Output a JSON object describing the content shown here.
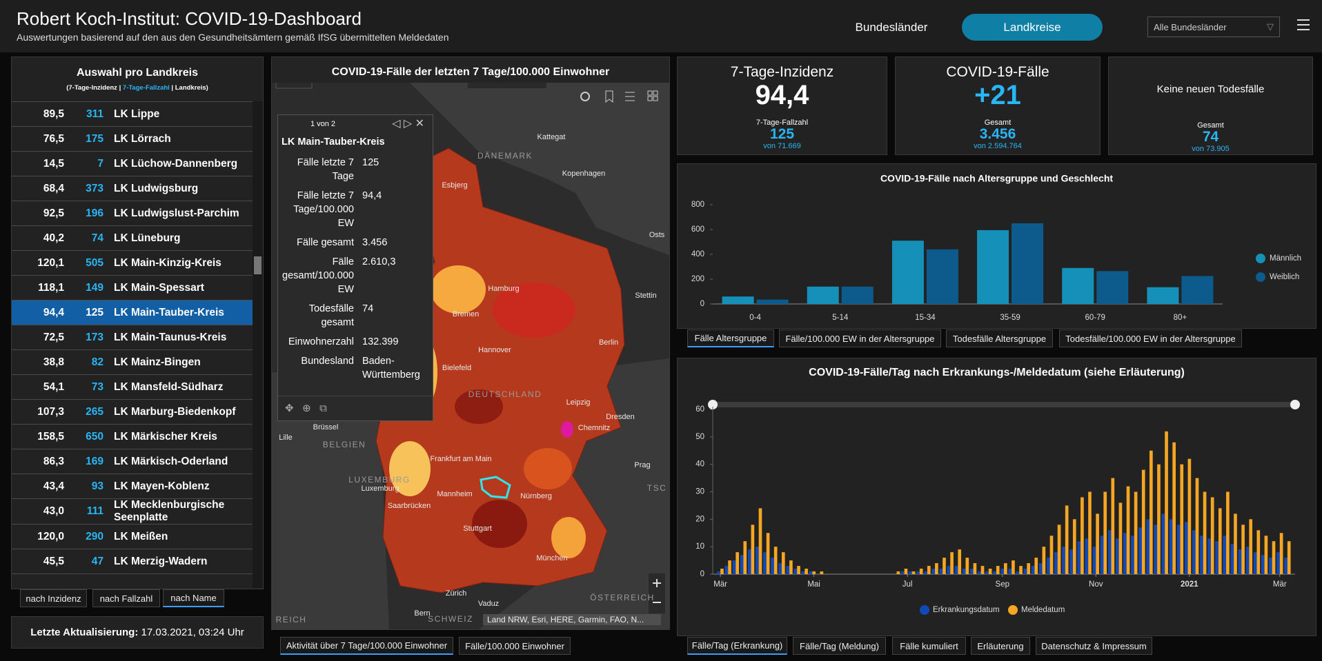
{
  "header": {
    "title": "Robert Koch-Institut: COVID-19-Dashboard",
    "subtitle": "Auswertungen basierend auf den aus den Gesundheitsämtern gemäß IfSG übermittelten Meldedaten",
    "nav": [
      "Bundesländer",
      "Landkreise"
    ],
    "dropdown": "Alle Bundesländer"
  },
  "list": {
    "title": "Auswahl pro Landkreis",
    "legend": [
      "(7-Tage-Inzidenz | ",
      "7-Tage-Fallzahl",
      " | Landkreis)"
    ],
    "selected_row": 8,
    "rows": [
      [
        "89,5",
        "311",
        "LK Lippe"
      ],
      [
        "76,5",
        "175",
        "LK Lörrach"
      ],
      [
        "14,5",
        "7",
        "LK Lüchow-Dannenberg"
      ],
      [
        "68,4",
        "373",
        "LK Ludwigsburg"
      ],
      [
        "92,5",
        "196",
        "LK Ludwigslust-Parchim"
      ],
      [
        "40,2",
        "74",
        "LK Lüneburg"
      ],
      [
        "120,1",
        "505",
        "LK Main-Kinzig-Kreis"
      ],
      [
        "118,1",
        "149",
        "LK Main-Spessart"
      ],
      [
        "94,4",
        "125",
        "LK Main-Tauber-Kreis"
      ],
      [
        "72,5",
        "173",
        "LK Main-Taunus-Kreis"
      ],
      [
        "38,8",
        "82",
        "LK Mainz-Bingen"
      ],
      [
        "54,1",
        "73",
        "LK Mansfeld-Südharz"
      ],
      [
        "107,3",
        "265",
        "LK Marburg-Biedenkopf"
      ],
      [
        "158,5",
        "650",
        "LK Märkischer Kreis"
      ],
      [
        "86,3",
        "169",
        "LK Märkisch-Oderland"
      ],
      [
        "43,4",
        "93",
        "LK Mayen-Koblenz"
      ],
      [
        "43,0",
        "111",
        "LK Mecklenburgische Seenplatte"
      ],
      [
        "120,0",
        "290",
        "LK Meißen"
      ],
      [
        "45,5",
        "47",
        "LK Merzig-Wadern"
      ]
    ],
    "sort_buttons": [
      "nach Inzidenz",
      "nach Fallzahl",
      "nach Name"
    ],
    "active_sort": 2
  },
  "update": {
    "label": "Letzte Aktualisierung:",
    "value": "17.03.2021, 03:24 Uhr"
  },
  "map": {
    "title": "COVID-19-Fälle der letzten 7 Tage/100.000 Einwohner",
    "labels": [
      "Kattegat",
      "DÄNEMARK",
      "Esbjerg",
      "Kopenhagen",
      "Osts",
      "Hamburg",
      "Stettin",
      "Bremen",
      "Hannover",
      "Berlin",
      "Bielefeld",
      "DEUTSCHLAND",
      "Leipzig",
      "Dresden",
      "Brüssel",
      "Chemnitz",
      "Lille",
      "BELGIEN",
      "Frankfurt am Main",
      "Prag",
      "LUXEMBURG",
      "Luxemburg",
      "Mannheim",
      "Nürnberg",
      "TSC",
      "Saarbrücken",
      "Stuttgart",
      "München",
      "Zürich",
      "Vaduz",
      "ÖSTERREICH",
      "Bern",
      "SCHWEIZ",
      "REICH"
    ],
    "attribution": "Land NRW, Esri, HERE, Garmin, FAO, N...",
    "tabs": [
      "Aktivität über 7 Tage/100.000 Einwohner",
      "Fälle/100.000 Einwohner"
    ],
    "active_tab": 0,
    "popup": {
      "pager": "1 von 2",
      "title": "LK Main-Tauber-Kreis",
      "fields": [
        [
          "Fälle letzte 7 Tage",
          "125"
        ],
        [
          "Fälle letzte 7 Tage/100.000 EW",
          "94,4"
        ],
        [
          "Fälle gesamt",
          "3.456"
        ],
        [
          "Fälle gesamt/100.000 EW",
          "2.610,3"
        ],
        [
          "Todesfälle gesamt",
          "74"
        ],
        [
          "Einwohnerzahl",
          "132.399"
        ],
        [
          "Bundesland",
          "Baden-Württemberg"
        ]
      ]
    }
  },
  "stats": [
    {
      "title": "7-Tage-Inzidenz",
      "value": "94,4",
      "sub_label": "7-Tage-Fallzahl",
      "sub_value": "125",
      "sub_total": "von 71.669"
    },
    {
      "title": "COVID-19-Fälle",
      "value": "+21",
      "sub_label": "Gesamt",
      "sub_value": "3.456",
      "sub_total": "von 2.594.764"
    },
    {
      "title": "Keine neuen Todesfälle",
      "sub_label": "Gesamt",
      "sub_value": "74",
      "sub_total": "von 73.905"
    }
  ],
  "chart_data": [
    {
      "type": "bar",
      "title": "COVID-19-Fälle nach Altersgruppe und Geschlecht",
      "categories": [
        "0-4",
        "5-14",
        "15-34",
        "35-59",
        "60-79",
        "80+"
      ],
      "series": [
        {
          "name": "Männlich",
          "color": "#1590b8",
          "values": [
            60,
            140,
            510,
            595,
            290,
            135
          ]
        },
        {
          "name": "Weiblich",
          "color": "#0d5b8c",
          "values": [
            35,
            140,
            440,
            650,
            265,
            225
          ]
        }
      ],
      "ylim": [
        0,
        800
      ],
      "yticks": [
        0,
        200,
        400,
        600,
        800
      ],
      "grid": false,
      "legend": "right",
      "tabs": [
        "Fälle Altersgruppe",
        "Fälle/100.000 EW in der Altersgruppe",
        "Todesfälle Altersgruppe",
        "Todesfälle/100.000 EW in der Altersgruppe"
      ],
      "active_tab": 0
    },
    {
      "type": "bar",
      "title": "COVID-19-Fälle/Tag nach Erkrankungs-/Meldedatum (siehe Erläuterung)",
      "x": [
        0,
        5,
        10,
        15,
        20,
        25,
        30,
        35,
        40,
        45,
        50,
        55,
        60,
        65,
        70,
        75,
        80,
        85,
        90,
        95,
        100,
        105,
        110,
        115,
        120,
        125,
        130,
        135,
        140,
        145,
        150,
        155,
        160,
        165,
        170,
        175,
        180,
        185,
        190,
        195,
        200,
        205,
        210,
        215,
        220,
        225,
        230,
        235,
        240,
        245,
        250,
        255,
        260,
        265,
        270,
        275,
        280,
        285,
        290,
        295,
        300,
        305,
        310,
        315,
        320,
        325,
        330,
        335,
        340,
        345,
        350,
        355,
        360,
        365,
        370
      ],
      "series": [
        {
          "name": "Erkrankungsdatum",
          "color": "#1149b8",
          "values": [
            1,
            3,
            5,
            7,
            9,
            10,
            8,
            6,
            4,
            3,
            2,
            1,
            1,
            0,
            0,
            0,
            0,
            0,
            0,
            0,
            0,
            0,
            0,
            0,
            1,
            1,
            1,
            1,
            2,
            2,
            3,
            3,
            2,
            2,
            1,
            1,
            1,
            2,
            2,
            1,
            2,
            3,
            4,
            6,
            8,
            10,
            9,
            12,
            13,
            10,
            14,
            16,
            13,
            15,
            14,
            17,
            20,
            18,
            22,
            20,
            18,
            19,
            16,
            14,
            13,
            12,
            14,
            11,
            9,
            10,
            8,
            7,
            6,
            8,
            6
          ]
        },
        {
          "name": "Meldedatum",
          "color": "#f5a623",
          "values": [
            2,
            5,
            8,
            12,
            18,
            24,
            15,
            10,
            8,
            5,
            3,
            2,
            1,
            1,
            0,
            0,
            0,
            0,
            0,
            0,
            0,
            0,
            0,
            1,
            2,
            1,
            2,
            3,
            4,
            6,
            8,
            9,
            6,
            4,
            3,
            2,
            3,
            4,
            5,
            3,
            4,
            6,
            10,
            14,
            18,
            25,
            20,
            28,
            30,
            22,
            30,
            35,
            26,
            32,
            30,
            38,
            45,
            40,
            52,
            48,
            40,
            42,
            35,
            30,
            28,
            24,
            30,
            22,
            18,
            20,
            16,
            14,
            12,
            15,
            12
          ]
        }
      ],
      "xlim": [
        -5,
        375
      ],
      "xticks": [
        {
          "value": 0,
          "label": "Mär"
        },
        {
          "value": 61,
          "label": "Mai"
        },
        {
          "value": 122,
          "label": "Jul"
        },
        {
          "value": 184,
          "label": "Sep"
        },
        {
          "value": 245,
          "label": "Nov"
        },
        {
          "value": 306,
          "label": "2021"
        },
        {
          "value": 365,
          "label": "Mär"
        }
      ],
      "ylim": [
        0,
        60
      ],
      "yticks": [
        0,
        10,
        20,
        30,
        40,
        50,
        60
      ],
      "grid": false,
      "legend": "bottom",
      "tabs": [
        "Fälle/Tag (Erkrankung)",
        "Fälle/Tag (Meldung)",
        "Fälle kumuliert",
        "Erläuterung",
        "Datenschutz & Impressum"
      ],
      "active_tab": 0
    }
  ]
}
